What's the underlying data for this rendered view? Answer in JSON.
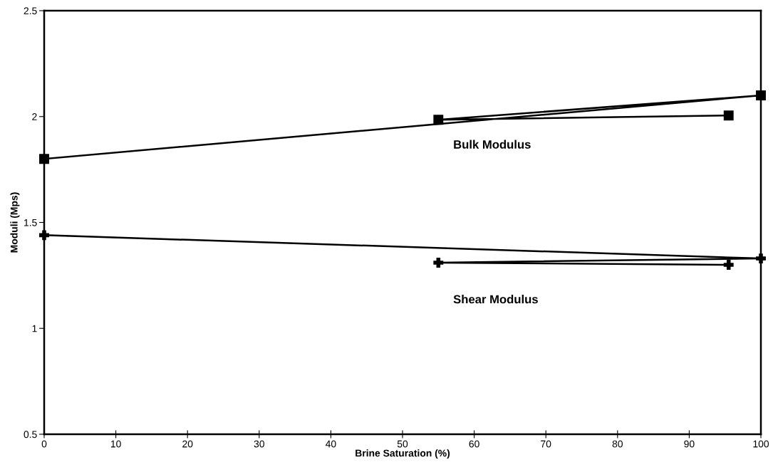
{
  "chart_data": {
    "type": "line",
    "xlabel": "Brine Saturation (%)",
    "ylabel": "Moduli (Mps)",
    "xlim": [
      0,
      100
    ],
    "xticks": [
      0,
      10,
      20,
      30,
      40,
      50,
      60,
      70,
      80,
      90,
      100
    ],
    "ylim": [
      0.5,
      2.5
    ],
    "yticks": [
      0.5,
      1,
      1.5,
      2,
      2.5
    ],
    "grid": false,
    "legend": false,
    "series": [
      {
        "name": "Bulk Modulus",
        "color": "#000000",
        "marker": "square",
        "x": [
          0,
          100,
          55,
          95.5
        ],
        "values": [
          1.8,
          2.1,
          1.985,
          2.005
        ]
      },
      {
        "name": "Shear Modulus",
        "color": "#000000",
        "marker": "cross",
        "x": [
          0,
          100,
          55,
          95.5
        ],
        "values": [
          1.44,
          1.33,
          1.31,
          1.3
        ]
      }
    ]
  }
}
